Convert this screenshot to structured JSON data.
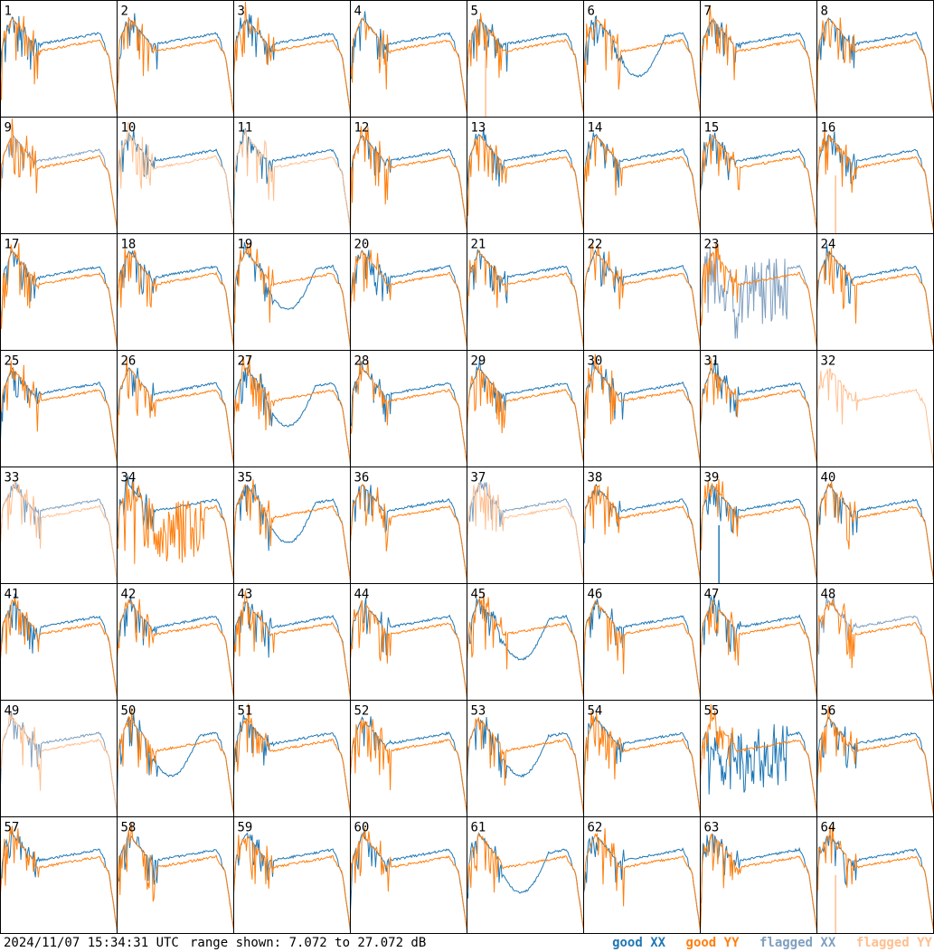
{
  "footer": {
    "timestamp": "2024/11/07 15:34:31 UTC",
    "range_text": "range shown: 7.072 to 27.072 dB"
  },
  "legend": [
    {
      "label": "good XX",
      "color": "#1f77b4"
    },
    {
      "label": "good YY",
      "color": "#ff7f0e"
    },
    {
      "label": "flagged XX",
      "color": "#7f9fbf"
    },
    {
      "label": "flagged YY",
      "color": "#ffbf8f"
    }
  ],
  "chart_data": {
    "type": "line",
    "grid_rows": 8,
    "grid_cols": 8,
    "ylim": [
      7.072,
      27.072
    ],
    "yunit": "dB",
    "panel_labels": [
      "1",
      "2",
      "3",
      "4",
      "5",
      "6",
      "7",
      "8",
      "9",
      "10",
      "11",
      "12",
      "13",
      "14",
      "15",
      "16",
      "17",
      "18",
      "19",
      "20",
      "21",
      "22",
      "23",
      "24",
      "25",
      "26",
      "27",
      "28",
      "29",
      "30",
      "31",
      "32",
      "33",
      "34",
      "35",
      "36",
      "37",
      "38",
      "39",
      "40",
      "41",
      "42",
      "43",
      "44",
      "45",
      "46",
      "47",
      "48",
      "49",
      "50",
      "51",
      "52",
      "53",
      "54",
      "55",
      "56",
      "57",
      "58",
      "59",
      "60",
      "61",
      "62",
      "63",
      "64"
    ],
    "panels": {
      "5": {
        "yy": "flagged-spike"
      },
      "6": {
        "xx": "dip"
      },
      "9": {
        "xx": "flagged-spikes",
        "yy": "good"
      },
      "10": {
        "xx": "good",
        "yy": "flagged"
      },
      "11": {
        "xx": "good",
        "yy": "flagged"
      },
      "16": {
        "yy": "flagged-spike"
      },
      "19": {
        "xx": "dip"
      },
      "23": {
        "xx": "flagged-noisy",
        "yy": "good"
      },
      "27": {
        "xx": "dip"
      },
      "32": {
        "xx": "none",
        "yy": "flagged"
      },
      "33": {
        "xx": "flagged",
        "yy": "flagged"
      },
      "34": {
        "yy": "spikes"
      },
      "35": {
        "xx": "dip"
      },
      "37": {
        "xx": "flagged",
        "yy": "flagged"
      },
      "39": {
        "xx": "spike"
      },
      "45": {
        "xx": "dip"
      },
      "48": {
        "xx": "flagged",
        "yy": "good"
      },
      "49": {
        "xx": "flagged",
        "yy": "flagged"
      },
      "50": {
        "xx": "dip"
      },
      "53": {
        "xx": "dip"
      },
      "55": {
        "xx": "spikes"
      },
      "61": {
        "xx": "dip"
      },
      "64": {
        "yy": "flagged-spike"
      }
    }
  }
}
